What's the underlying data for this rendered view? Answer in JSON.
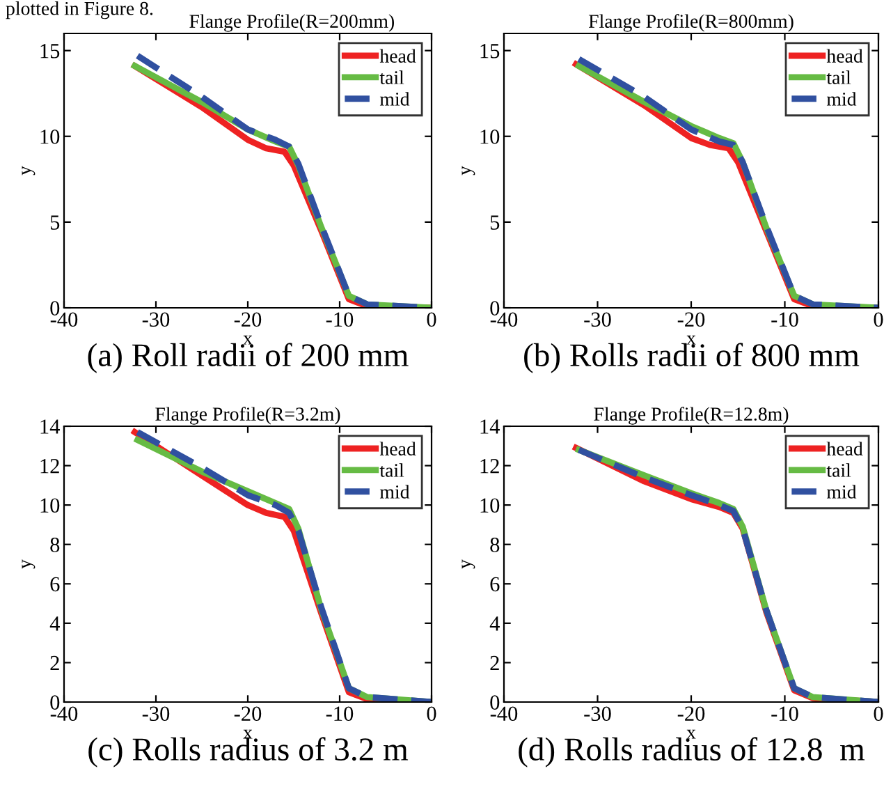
{
  "chart_data": [
    {
      "type": "line",
      "title": "Flange Profile(R=200mm)",
      "xlabel": "x",
      "ylabel": "y",
      "xlim": [
        -40,
        0
      ],
      "xticks": [
        -40,
        -30,
        -20,
        -10,
        0
      ],
      "ylim": [
        0,
        16
      ],
      "yticks": [
        0,
        5,
        10,
        15
      ],
      "legend": "top right",
      "grid": false,
      "annotations": [
        "plotted in Figure 8.",
        "(a) Roll radii of 200 mm"
      ],
      "series": [
        {
          "name": "head",
          "color": "#ee2222",
          "line_style": "solid",
          "x": [
            -32.3,
            -25,
            -20,
            -18,
            -16,
            -15,
            -12,
            -9,
            -7,
            0
          ],
          "values": [
            14.1,
            11.7,
            9.8,
            9.3,
            9.1,
            8.3,
            4.5,
            0.5,
            0.1,
            0
          ]
        },
        {
          "name": "tail",
          "color": "#66bb44",
          "line_style": "solid",
          "x": [
            -32.3,
            -25,
            -20,
            -17,
            -15.5,
            -14.5,
            -12,
            -9,
            -7,
            0
          ],
          "values": [
            14.1,
            12.0,
            10.4,
            9.7,
            9.4,
            8.3,
            4.7,
            0.7,
            0.2,
            0
          ]
        },
        {
          "name": "mid",
          "color": "#3050a0",
          "line_style": "dashed",
          "x": [
            -32,
            -25,
            -20,
            -17,
            -15.5,
            -14.5,
            -12,
            -9,
            -7,
            0
          ],
          "values": [
            14.7,
            12.3,
            10.4,
            9.8,
            9.4,
            8.4,
            4.8,
            0.7,
            0.2,
            0
          ]
        }
      ]
    },
    {
      "type": "line",
      "title": "Flange Profile(R=800mm)",
      "xlabel": "x",
      "ylabel": "y",
      "xlim": [
        -40,
        0
      ],
      "xticks": [
        -40,
        -30,
        -20,
        -10,
        0
      ],
      "ylim": [
        0,
        16
      ],
      "yticks": [
        0,
        5,
        10,
        15
      ],
      "legend": "top right",
      "grid": false,
      "annotations": [
        "(b) Rolls radii of 800 mm"
      ],
      "series": [
        {
          "name": "head",
          "color": "#ee2222",
          "line_style": "solid",
          "x": [
            -32.3,
            -25,
            -20,
            -18,
            -16,
            -15,
            -12,
            -9,
            -7,
            0
          ],
          "values": [
            14.2,
            11.8,
            9.9,
            9.5,
            9.3,
            8.5,
            4.5,
            0.5,
            0.1,
            0
          ]
        },
        {
          "name": "tail",
          "color": "#66bb44",
          "line_style": "solid",
          "x": [
            -32,
            -25,
            -20,
            -17,
            -15.5,
            -14.5,
            -12,
            -9,
            -7,
            0
          ],
          "values": [
            14.1,
            12.0,
            10.6,
            9.9,
            9.6,
            8.5,
            4.7,
            0.7,
            0.2,
            0
          ]
        },
        {
          "name": "mid",
          "color": "#3050a0",
          "line_style": "dashed",
          "x": [
            -32,
            -25,
            -20,
            -17,
            -15.5,
            -14.5,
            -12,
            -9,
            -7,
            0
          ],
          "values": [
            14.5,
            12.3,
            10.4,
            9.7,
            9.5,
            8.5,
            4.8,
            0.7,
            0.2,
            0
          ]
        }
      ]
    },
    {
      "type": "line",
      "title": "Flange Profile(R=3.2m)",
      "xlabel": "x",
      "ylabel": "y",
      "xlim": [
        -40,
        0
      ],
      "xticks": [
        -40,
        -30,
        -20,
        -10,
        0
      ],
      "ylim": [
        0,
        14
      ],
      "yticks": [
        0,
        2,
        4,
        6,
        8,
        10,
        12,
        14
      ],
      "legend": "top right",
      "grid": false,
      "annotations": [
        "(c) Rolls radius of 3.2 m"
      ],
      "series": [
        {
          "name": "head",
          "color": "#ee2222",
          "line_style": "solid",
          "x": [
            -32.3,
            -25,
            -20,
            -18,
            -16,
            -15,
            -12,
            -9,
            -7,
            0
          ],
          "values": [
            13.7,
            11.5,
            10.0,
            9.6,
            9.4,
            8.7,
            4.5,
            0.5,
            0.15,
            0
          ]
        },
        {
          "name": "tail",
          "color": "#66bb44",
          "line_style": "solid",
          "x": [
            -32,
            -25,
            -20,
            -17,
            -15.5,
            -14.5,
            -12,
            -9,
            -7,
            0
          ],
          "values": [
            13.3,
            11.7,
            10.7,
            10.1,
            9.8,
            8.8,
            4.7,
            0.7,
            0.25,
            0
          ]
        },
        {
          "name": "mid",
          "color": "#3050a0",
          "line_style": "dashed",
          "x": [
            -32,
            -25,
            -20,
            -17,
            -15.5,
            -14.5,
            -12,
            -9,
            -7,
            0
          ],
          "values": [
            13.7,
            11.9,
            10.5,
            10.0,
            9.6,
            8.7,
            4.8,
            0.7,
            0.25,
            0
          ]
        }
      ]
    },
    {
      "type": "line",
      "title": "Flange Profile(R=12.8m)",
      "xlabel": "x",
      "ylabel": "y",
      "xlim": [
        -40,
        0
      ],
      "xticks": [
        -40,
        -30,
        -20,
        -10,
        0
      ],
      "ylim": [
        0,
        14
      ],
      "yticks": [
        0,
        2,
        4,
        6,
        8,
        10,
        12,
        14
      ],
      "legend": "top right",
      "grid": false,
      "annotations": [
        "(d) Rolls radius of 12.8  m"
      ],
      "series": [
        {
          "name": "head",
          "color": "#ee2222",
          "line_style": "solid",
          "x": [
            -32.3,
            -25,
            -20,
            -17,
            -15.5,
            -14.5,
            -12,
            -9,
            -7,
            0
          ],
          "values": [
            12.9,
            11.2,
            10.3,
            9.9,
            9.6,
            8.8,
            4.6,
            0.6,
            0.2,
            0
          ]
        },
        {
          "name": "tail",
          "color": "#66bb44",
          "line_style": "solid",
          "x": [
            -32,
            -25,
            -20,
            -17,
            -15.5,
            -14.5,
            -12,
            -9,
            -7,
            0
          ],
          "values": [
            12.8,
            11.5,
            10.6,
            10.1,
            9.8,
            8.9,
            4.7,
            0.7,
            0.25,
            0
          ]
        },
        {
          "name": "mid",
          "color": "#3050a0",
          "line_style": "dashed",
          "x": [
            -32,
            -25,
            -20,
            -17,
            -15.5,
            -14.5,
            -12,
            -9,
            -7,
            0
          ],
          "values": [
            12.8,
            11.4,
            10.5,
            10.0,
            9.7,
            8.8,
            4.7,
            0.7,
            0.25,
            0
          ]
        }
      ]
    }
  ]
}
